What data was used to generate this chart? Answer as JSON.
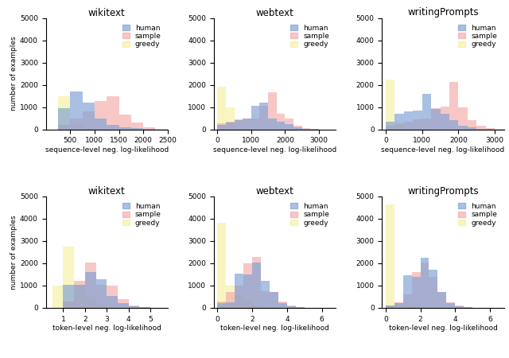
{
  "titles_row1": [
    "wikitext",
    "webtext",
    "writingPrompts"
  ],
  "titles_row2": [
    "wikitext",
    "webtext",
    "writingPrompts"
  ],
  "xlabel_row1": "sequence-level neg. log-likelihood",
  "xlabel_row2": "token-level neg. log-likelihood",
  "ylabel": "number of examples",
  "ylim": [
    0,
    5000
  ],
  "yticks": [
    0,
    1000,
    2000,
    3000,
    4000,
    5000
  ],
  "colors": {
    "human": "#7b9fd4",
    "sample": "#f4a9a8",
    "greedy": "#f5f0a0"
  },
  "alpha": 0.65,
  "seq_wikitext": {
    "human_edges": [
      250,
      500,
      750,
      1000,
      1250,
      1500,
      1750,
      2000,
      2250,
      2500
    ],
    "human_vals": [
      950,
      1700,
      1200,
      500,
      200,
      100,
      50,
      20,
      5
    ],
    "sample_edges": [
      250,
      500,
      750,
      1000,
      1250,
      1500,
      1750,
      2000,
      2250,
      2500
    ],
    "sample_vals": [
      200,
      500,
      800,
      1280,
      1470,
      650,
      300,
      100,
      30
    ],
    "greedy_edges": [
      250,
      500,
      750,
      1000,
      1250,
      1500,
      1750,
      2000,
      2250,
      2500
    ],
    "greedy_vals": [
      1500,
      200,
      50,
      10,
      5,
      2,
      1,
      0,
      0
    ],
    "xlim": [
      0,
      2500
    ],
    "xticks": [
      500,
      1000,
      1500,
      2000,
      2500
    ]
  },
  "seq_webtext": {
    "human_edges": [
      0,
      250,
      500,
      750,
      1000,
      1250,
      1500,
      1750,
      2000,
      2250,
      2500,
      2750,
      3000,
      3250
    ],
    "human_vals": [
      200,
      300,
      400,
      500,
      1050,
      1200,
      500,
      350,
      250,
      100,
      40,
      15,
      5
    ],
    "sample_edges": [
      0,
      250,
      500,
      750,
      1000,
      1250,
      1500,
      1750,
      2000,
      2250,
      2500,
      2750,
      3000,
      3250
    ],
    "sample_vals": [
      280,
      350,
      450,
      500,
      500,
      1050,
      1660,
      700,
      500,
      150,
      60,
      20,
      5
    ],
    "greedy_edges": [
      0,
      250,
      500,
      750,
      1000,
      1250,
      1500,
      1750,
      2000,
      2250,
      2500,
      2750,
      3000,
      3250
    ],
    "greedy_vals": [
      1900,
      1000,
      50,
      10,
      5,
      3,
      2,
      1,
      0,
      0,
      0,
      0,
      0
    ],
    "xlim": [
      -100,
      3500
    ],
    "xticks": [
      0,
      1000,
      2000,
      3000
    ]
  },
  "seq_writingprompts": {
    "human_edges": [
      0,
      250,
      500,
      750,
      1000,
      1250,
      1500,
      1750,
      2000,
      2250,
      2500,
      2750,
      3000,
      3250
    ],
    "human_vals": [
      350,
      700,
      800,
      850,
      1600,
      900,
      700,
      400,
      150,
      80,
      30,
      10,
      5
    ],
    "sample_edges": [
      0,
      250,
      500,
      750,
      1000,
      1250,
      1500,
      1750,
      2000,
      2250,
      2500,
      2750,
      3000,
      3250
    ],
    "sample_vals": [
      150,
      250,
      350,
      450,
      500,
      950,
      1040,
      2120,
      1000,
      400,
      150,
      50,
      10
    ],
    "greedy_edges": [
      0,
      250,
      500,
      750,
      1000,
      1250,
      1500,
      1750,
      2000,
      2250,
      2500,
      2750,
      3000,
      3250
    ],
    "greedy_vals": [
      2250,
      350,
      50,
      10,
      5,
      2,
      1,
      0,
      0,
      0,
      0,
      0,
      0
    ],
    "xlim": [
      -100,
      3250
    ],
    "xticks": [
      0,
      1000,
      2000,
      3000
    ]
  },
  "tok_wikitext": {
    "human_edges": [
      0.5,
      1.0,
      1.5,
      2.0,
      2.5,
      3.0,
      3.5,
      4.0,
      4.5,
      5.0,
      5.5
    ],
    "human_vals": [
      0,
      1050,
      1050,
      1600,
      1300,
      550,
      200,
      80,
      20,
      5
    ],
    "sample_edges": [
      0.5,
      1.0,
      1.5,
      2.0,
      2.5,
      3.0,
      3.5,
      4.0,
      4.5,
      5.0,
      5.5
    ],
    "sample_vals": [
      0,
      300,
      1200,
      2050,
      1050,
      1000,
      400,
      100,
      30,
      5
    ],
    "greedy_edges": [
      0.5,
      1.0,
      1.5,
      2.0,
      2.5,
      3.0,
      3.5,
      4.0,
      4.5,
      5.0,
      5.5
    ],
    "greedy_vals": [
      1000,
      2750,
      1050,
      500,
      150,
      50,
      10,
      2,
      0,
      0
    ],
    "xlim": [
      0.2,
      5.8
    ],
    "xticks": [
      1,
      2,
      3,
      4,
      5
    ]
  },
  "tok_webtext": {
    "human_edges": [
      0,
      0.5,
      1.0,
      1.5,
      2.0,
      2.5,
      3.0,
      3.5,
      4.0,
      4.5,
      5.0,
      5.5,
      6.0,
      6.5
    ],
    "human_vals": [
      200,
      250,
      1520,
      1500,
      2050,
      1200,
      700,
      200,
      80,
      30,
      10,
      5,
      2
    ],
    "sample_edges": [
      0,
      0.5,
      1.0,
      1.5,
      2.0,
      2.5,
      3.0,
      3.5,
      4.0,
      4.5,
      5.0,
      5.5,
      6.0,
      6.5
    ],
    "sample_vals": [
      300,
      700,
      1000,
      2000,
      2300,
      750,
      700,
      300,
      100,
      40,
      10,
      5,
      1
    ],
    "greedy_edges": [
      0,
      0.5,
      1.0,
      1.5,
      2.0,
      2.5,
      3.0,
      3.5,
      4.0,
      4.5,
      5.0,
      5.5,
      6.0,
      6.5
    ],
    "greedy_vals": [
      3800,
      1000,
      600,
      350,
      100,
      50,
      20,
      10,
      5,
      2,
      1,
      0,
      0
    ],
    "xlim": [
      -0.2,
      6.8
    ],
    "xticks": [
      0,
      2,
      4,
      6
    ]
  },
  "tok_writingprompts": {
    "human_edges": [
      0,
      0.5,
      1.0,
      1.5,
      2.0,
      2.5,
      3.0,
      3.5,
      4.0,
      4.5,
      5.0,
      5.5,
      6.0,
      6.5
    ],
    "human_vals": [
      100,
      200,
      1450,
      1400,
      2250,
      1700,
      700,
      200,
      80,
      30,
      10,
      5,
      1
    ],
    "sample_edges": [
      0,
      0.5,
      1.0,
      1.5,
      2.0,
      2.5,
      3.0,
      3.5,
      4.0,
      4.5,
      5.0,
      5.5,
      6.0,
      6.5
    ],
    "sample_vals": [
      100,
      250,
      600,
      1600,
      2050,
      1400,
      700,
      250,
      100,
      30,
      10,
      5,
      1
    ],
    "greedy_edges": [
      0,
      0.5,
      1.0,
      1.5,
      2.0,
      2.5,
      3.0,
      3.5,
      4.0,
      4.5,
      5.0,
      5.5,
      6.0,
      6.5
    ],
    "greedy_vals": [
      4650,
      200,
      100,
      50,
      20,
      10,
      5,
      2,
      1,
      0,
      0,
      0,
      0
    ],
    "xlim": [
      -0.2,
      6.8
    ],
    "xticks": [
      0,
      2,
      4,
      6
    ]
  }
}
